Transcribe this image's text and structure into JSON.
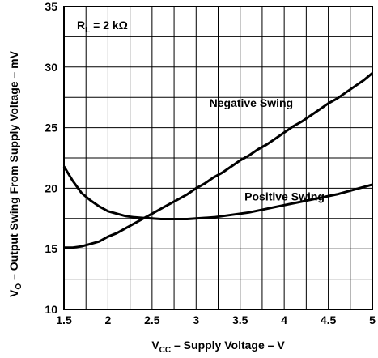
{
  "chart_data": {
    "type": "line",
    "title": "",
    "xlabel": {
      "main": "V",
      "sub": "CC",
      "rest": " – Supply Voltage – V"
    },
    "ylabel": {
      "main": "V",
      "sub": "O",
      "rest": " – Output Swing From Supply Voltage – mV"
    },
    "annotation": {
      "main": "R",
      "sub": "L",
      "rest": " = 2 kΩ"
    },
    "xlim": [
      1.5,
      5
    ],
    "ylim": [
      10,
      35
    ],
    "xticks": [
      "1.5",
      "2",
      "2.5",
      "3",
      "3.5",
      "4",
      "4.5",
      "5"
    ],
    "yticks": [
      "10",
      "15",
      "20",
      "25",
      "30",
      "35"
    ],
    "grid": true,
    "series": [
      {
        "name": "Negative Swing",
        "x": [
          1.5,
          1.6,
          1.7,
          1.8,
          1.9,
          2.0,
          2.1,
          2.2,
          2.3,
          2.4,
          2.5,
          2.6,
          2.7,
          2.8,
          2.9,
          3.0,
          3.1,
          3.2,
          3.3,
          3.4,
          3.5,
          3.6,
          3.7,
          3.8,
          3.9,
          4.0,
          4.1,
          4.2,
          4.3,
          4.4,
          4.5,
          4.6,
          4.7,
          4.8,
          4.9,
          5.0
        ],
        "y": [
          15.1,
          15.1,
          15.2,
          15.4,
          15.6,
          16.0,
          16.3,
          16.7,
          17.1,
          17.5,
          17.9,
          18.3,
          18.7,
          19.1,
          19.5,
          20.0,
          20.4,
          20.9,
          21.3,
          21.8,
          22.3,
          22.7,
          23.2,
          23.6,
          24.1,
          24.6,
          25.1,
          25.5,
          26.0,
          26.5,
          27.0,
          27.4,
          27.9,
          28.4,
          28.9,
          29.5
        ]
      },
      {
        "name": "Positive Swing",
        "x": [
          1.5,
          1.6,
          1.7,
          1.8,
          1.9,
          2.0,
          2.1,
          2.2,
          2.3,
          2.4,
          2.5,
          2.6,
          2.7,
          2.8,
          2.9,
          3.0,
          3.2,
          3.4,
          3.6,
          3.8,
          4.0,
          4.2,
          4.4,
          4.6,
          4.8,
          5.0
        ],
        "y": [
          21.8,
          20.6,
          19.6,
          19.0,
          18.5,
          18.1,
          17.9,
          17.7,
          17.6,
          17.55,
          17.5,
          17.45,
          17.45,
          17.45,
          17.45,
          17.5,
          17.6,
          17.8,
          18.0,
          18.3,
          18.6,
          18.9,
          19.2,
          19.5,
          19.9,
          20.3
        ]
      }
    ],
    "series_labels": [
      {
        "text": "Negative Swing",
        "x": 3.15,
        "y": 26.7
      },
      {
        "text": "Positive Swing",
        "x": 3.55,
        "y": 19.0
      }
    ]
  }
}
